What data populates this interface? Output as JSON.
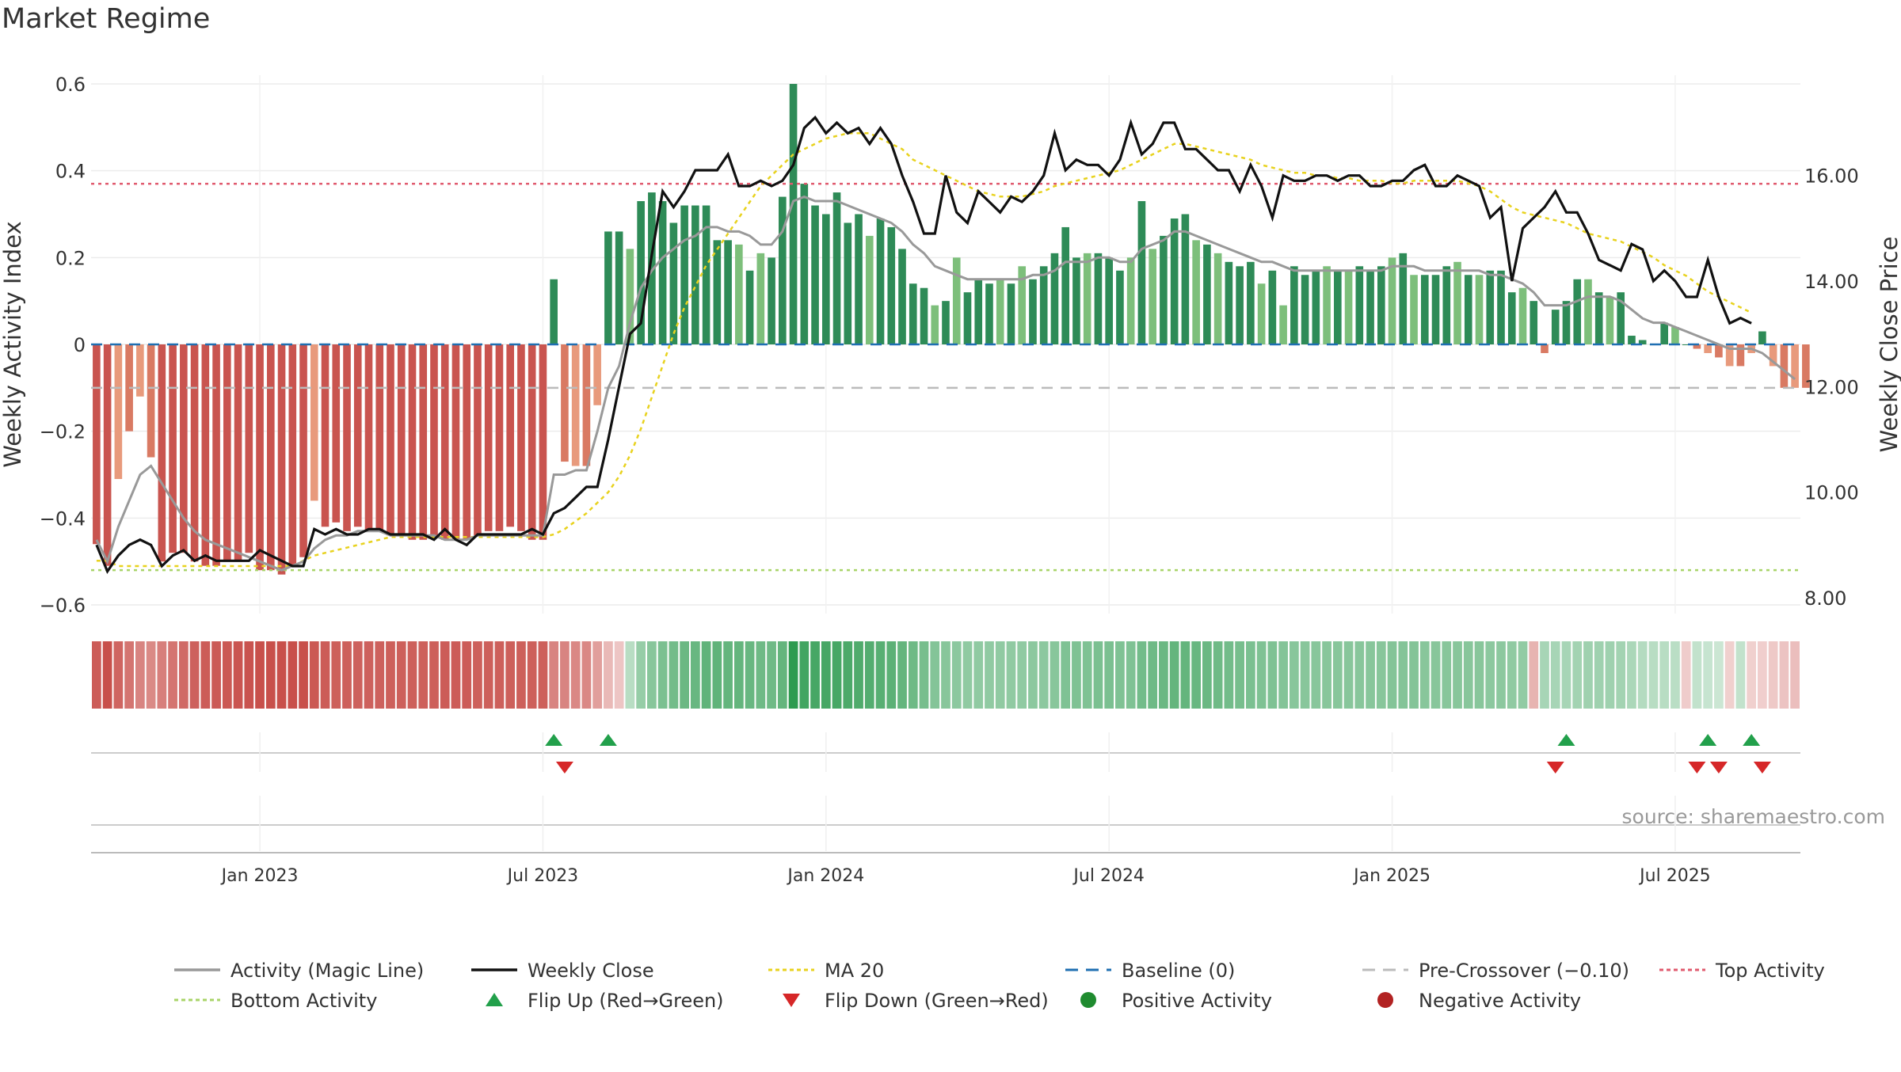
{
  "title": "Market Regime",
  "source": "source: sharemaestro.com",
  "colors": {
    "red_dark": "#c9544f",
    "red_mid": "#d97a63",
    "red_light": "#e89a7c",
    "green_dark": "#2e8b57",
    "green_light": "#7dbf7b",
    "magic": "#999999",
    "close": "#111111",
    "ma20": "#e8d21e",
    "baseline": "#1f6fb2",
    "precross": "#bbbbbb",
    "top": "#e05a6e",
    "bottom": "#a8d468",
    "flip_up": "#22a04b",
    "flip_down": "#d62728",
    "positive": "#1f8b2f",
    "negative": "#b22222"
  },
  "chart_data": {
    "type": "bar",
    "ylabel": "Weekly Activity Index",
    "y2label": "Weekly Close Price",
    "ylim": [
      -0.62,
      0.62
    ],
    "y2lim": [
      7.7,
      17.9
    ],
    "yticks": [
      "0.6",
      "0.4",
      "0.2",
      "0",
      "−0.2",
      "−0.4",
      "−0.6"
    ],
    "yticks_values": [
      0.6,
      0.4,
      0.2,
      0,
      -0.2,
      -0.4,
      -0.6
    ],
    "y2ticks": [
      "16.00",
      "14.00",
      "12.00",
      "10.00",
      "8.00"
    ],
    "y2ticks_values": [
      16,
      14,
      12,
      10,
      8
    ],
    "xticks": [
      "Jan 2023",
      "Jul 2023",
      "Jan 2024",
      "Jul 2024",
      "Jan 2025",
      "Jul 2025"
    ],
    "xticks_weeks": [
      15,
      41,
      67,
      93,
      119,
      145
    ],
    "weeks": 157,
    "levels": {
      "top": 0.37,
      "bottom": -0.52,
      "pre_crossover": -0.1,
      "baseline": 0
    },
    "activity": [
      -0.46,
      -0.51,
      -0.31,
      -0.2,
      -0.12,
      -0.26,
      -0.5,
      -0.48,
      -0.48,
      -0.5,
      -0.51,
      -0.51,
      -0.5,
      -0.5,
      -0.48,
      -0.52,
      -0.52,
      -0.53,
      -0.51,
      -0.49,
      -0.36,
      -0.42,
      -0.41,
      -0.43,
      -0.42,
      -0.43,
      -0.43,
      -0.44,
      -0.44,
      -0.45,
      -0.45,
      -0.44,
      -0.45,
      -0.45,
      -0.45,
      -0.44,
      -0.43,
      -0.43,
      -0.42,
      -0.43,
      -0.45,
      -0.45,
      0.15,
      -0.27,
      -0.28,
      -0.28,
      -0.14,
      0.26,
      0.26,
      0.22,
      0.33,
      0.35,
      0.33,
      0.28,
      0.32,
      0.32,
      0.32,
      0.24,
      0.24,
      0.23,
      0.17,
      0.21,
      0.2,
      0.34,
      0.6,
      0.37,
      0.32,
      0.3,
      0.35,
      0.28,
      0.3,
      0.25,
      0.29,
      0.27,
      0.22,
      0.14,
      0.13,
      0.09,
      0.1,
      0.2,
      0.12,
      0.15,
      0.14,
      0.15,
      0.14,
      0.18,
      0.15,
      0.18,
      0.21,
      0.27,
      0.2,
      0.21,
      0.21,
      0.2,
      0.17,
      0.2,
      0.33,
      0.22,
      0.25,
      0.29,
      0.3,
      0.24,
      0.23,
      0.21,
      0.19,
      0.18,
      0.19,
      0.14,
      0.17,
      0.09,
      0.18,
      0.16,
      0.17,
      0.18,
      0.17,
      0.17,
      0.18,
      0.17,
      0.18,
      0.2,
      0.21,
      0.16,
      0.16,
      0.16,
      0.18,
      0.19,
      0.16,
      0.16,
      0.17,
      0.17,
      0.12,
      0.13,
      0.1,
      -0.02,
      0.08,
      0.1,
      0.15,
      0.15,
      0.12,
      0.11,
      0.12,
      0.02,
      0.01,
      0.0,
      0.05,
      0.04,
      0.0,
      -0.01,
      -0.02,
      -0.03,
      -0.05,
      -0.05,
      -0.02,
      0.03,
      -0.05,
      -0.1,
      -0.1,
      -0.1
    ],
    "magic_line": [
      -0.45,
      -0.5,
      -0.42,
      -0.36,
      -0.3,
      -0.28,
      -0.32,
      -0.36,
      -0.4,
      -0.43,
      -0.45,
      -0.46,
      -0.47,
      -0.48,
      -0.49,
      -0.5,
      -0.51,
      -0.52,
      -0.51,
      -0.5,
      -0.47,
      -0.45,
      -0.44,
      -0.44,
      -0.43,
      -0.43,
      -0.43,
      -0.44,
      -0.44,
      -0.44,
      -0.44,
      -0.44,
      -0.45,
      -0.45,
      -0.45,
      -0.44,
      -0.44,
      -0.44,
      -0.44,
      -0.44,
      -0.44,
      -0.44,
      -0.3,
      -0.3,
      -0.29,
      -0.29,
      -0.2,
      -0.1,
      -0.05,
      0.05,
      0.13,
      0.17,
      0.2,
      0.22,
      0.24,
      0.25,
      0.27,
      0.27,
      0.26,
      0.26,
      0.25,
      0.23,
      0.23,
      0.26,
      0.33,
      0.34,
      0.33,
      0.33,
      0.33,
      0.32,
      0.31,
      0.3,
      0.29,
      0.28,
      0.26,
      0.23,
      0.21,
      0.18,
      0.17,
      0.16,
      0.15,
      0.15,
      0.15,
      0.15,
      0.15,
      0.15,
      0.16,
      0.16,
      0.17,
      0.19,
      0.19,
      0.19,
      0.2,
      0.2,
      0.19,
      0.19,
      0.22,
      0.23,
      0.24,
      0.26,
      0.26,
      0.25,
      0.24,
      0.23,
      0.22,
      0.21,
      0.2,
      0.19,
      0.19,
      0.18,
      0.17,
      0.17,
      0.17,
      0.17,
      0.17,
      0.17,
      0.17,
      0.17,
      0.17,
      0.18,
      0.18,
      0.18,
      0.17,
      0.17,
      0.17,
      0.17,
      0.17,
      0.17,
      0.16,
      0.16,
      0.15,
      0.14,
      0.12,
      0.09,
      0.09,
      0.09,
      0.1,
      0.11,
      0.11,
      0.11,
      0.1,
      0.08,
      0.06,
      0.05,
      0.05,
      0.04,
      0.03,
      0.02,
      0.01,
      0.0,
      -0.01,
      -0.01,
      -0.01,
      -0.02,
      -0.04,
      -0.06,
      -0.08
    ],
    "weekly_close": [
      9.0,
      8.5,
      8.8,
      9.0,
      9.1,
      9.0,
      8.6,
      8.8,
      8.9,
      8.7,
      8.8,
      8.7,
      8.7,
      8.7,
      8.7,
      8.9,
      8.8,
      8.7,
      8.6,
      8.6,
      9.3,
      9.2,
      9.3,
      9.2,
      9.2,
      9.3,
      9.3,
      9.2,
      9.2,
      9.2,
      9.2,
      9.1,
      9.3,
      9.1,
      9.0,
      9.2,
      9.2,
      9.2,
      9.2,
      9.2,
      9.3,
      9.2,
      9.6,
      9.7,
      9.9,
      10.1,
      10.1,
      11.0,
      12.0,
      13.0,
      13.2,
      14.5,
      15.7,
      15.4,
      15.7,
      16.1,
      16.1,
      16.1,
      16.4,
      15.8,
      15.8,
      15.9,
      15.8,
      15.9,
      16.2,
      16.9,
      17.1,
      16.8,
      17.0,
      16.8,
      16.9,
      16.6,
      16.9,
      16.6,
      16.0,
      15.5,
      14.9,
      14.9,
      16.0,
      15.3,
      15.1,
      15.7,
      15.5,
      15.3,
      15.6,
      15.5,
      15.7,
      16.0,
      16.8,
      16.1,
      16.3,
      16.2,
      16.2,
      16.0,
      16.3,
      17.0,
      16.4,
      16.6,
      17.0,
      17.0,
      16.5,
      16.5,
      16.3,
      16.1,
      16.1,
      15.7,
      16.2,
      15.8,
      15.2,
      16.0,
      15.9,
      15.9,
      16.0,
      16.0,
      15.9,
      16.0,
      16.0,
      15.8,
      15.8,
      15.9,
      15.9,
      16.1,
      16.2,
      15.8,
      15.8,
      16.0,
      15.9,
      15.8,
      15.2,
      15.4,
      14.0,
      15.0,
      15.2,
      15.4,
      15.7,
      15.3,
      15.3,
      14.9,
      14.4,
      14.3,
      14.2,
      14.7,
      14.6,
      14.0,
      14.2,
      14.0,
      13.7,
      13.7,
      14.4,
      13.7,
      13.2,
      13.3,
      13.2
    ],
    "ma20": [
      8.7,
      8.7,
      8.6,
      8.6,
      8.6,
      8.6,
      8.6,
      8.6,
      8.6,
      8.6,
      8.6,
      8.6,
      8.6,
      8.6,
      8.6,
      8.6,
      8.6,
      8.6,
      8.6,
      8.7,
      8.8,
      8.85,
      8.9,
      8.95,
      9.0,
      9.05,
      9.1,
      9.15,
      9.15,
      9.15,
      9.15,
      9.15,
      9.15,
      9.15,
      9.15,
      9.15,
      9.15,
      9.15,
      9.15,
      9.15,
      9.15,
      9.15,
      9.2,
      9.3,
      9.45,
      9.6,
      9.8,
      10.0,
      10.3,
      10.7,
      11.2,
      11.8,
      12.4,
      13.0,
      13.5,
      13.9,
      14.3,
      14.6,
      14.9,
      15.2,
      15.5,
      15.8,
      16.0,
      16.2,
      16.4,
      16.5,
      16.6,
      16.7,
      16.75,
      16.8,
      16.8,
      16.8,
      16.7,
      16.6,
      16.5,
      16.3,
      16.2,
      16.1,
      16.0,
      15.9,
      15.8,
      15.7,
      15.65,
      15.6,
      15.6,
      15.6,
      15.65,
      15.7,
      15.8,
      15.85,
      15.9,
      15.95,
      16.0,
      16.05,
      16.1,
      16.2,
      16.3,
      16.4,
      16.5,
      16.6,
      16.6,
      16.55,
      16.5,
      16.45,
      16.4,
      16.35,
      16.3,
      16.2,
      16.15,
      16.1,
      16.05,
      16.05,
      16.0,
      16.0,
      15.95,
      15.95,
      15.9,
      15.9,
      15.9,
      15.85,
      15.85,
      15.9,
      15.9,
      15.9,
      15.9,
      15.9,
      15.85,
      15.8,
      15.7,
      15.55,
      15.4,
      15.3,
      15.25,
      15.2,
      15.15,
      15.1,
      15.0,
      14.9,
      14.85,
      14.8,
      14.75,
      14.65,
      14.55,
      14.45,
      14.3,
      14.2,
      14.1,
      13.95,
      13.8,
      13.7,
      13.6,
      13.5,
      13.4
    ],
    "tiles": [
      -0.45,
      -0.5,
      -0.42,
      -0.36,
      -0.3,
      -0.28,
      -0.32,
      -0.36,
      -0.4,
      -0.43,
      -0.45,
      -0.46,
      -0.47,
      -0.48,
      -0.49,
      -0.5,
      -0.51,
      -0.52,
      -0.51,
      -0.5,
      -0.47,
      -0.45,
      -0.44,
      -0.44,
      -0.43,
      -0.43,
      -0.43,
      -0.44,
      -0.44,
      -0.44,
      -0.44,
      -0.44,
      -0.45,
      -0.45,
      -0.45,
      -0.44,
      -0.44,
      -0.44,
      -0.44,
      -0.44,
      -0.44,
      -0.44,
      -0.3,
      -0.3,
      -0.29,
      -0.29,
      -0.2,
      -0.1,
      -0.05,
      0.05,
      0.13,
      0.17,
      0.2,
      0.22,
      0.24,
      0.25,
      0.27,
      0.27,
      0.26,
      0.26,
      0.25,
      0.23,
      0.23,
      0.26,
      0.45,
      0.34,
      0.33,
      0.33,
      0.33,
      0.32,
      0.31,
      0.3,
      0.29,
      0.28,
      0.26,
      0.23,
      0.21,
      0.18,
      0.17,
      0.16,
      0.15,
      0.15,
      0.15,
      0.15,
      0.15,
      0.15,
      0.16,
      0.16,
      0.17,
      0.19,
      0.19,
      0.19,
      0.2,
      0.2,
      0.19,
      0.19,
      0.22,
      0.23,
      0.24,
      0.26,
      0.26,
      0.25,
      0.24,
      0.23,
      0.22,
      0.21,
      0.2,
      0.19,
      0.19,
      0.18,
      0.17,
      0.17,
      0.17,
      0.17,
      0.17,
      0.17,
      0.17,
      0.17,
      0.17,
      0.18,
      0.18,
      0.18,
      0.17,
      0.17,
      0.17,
      0.17,
      0.17,
      0.17,
      0.16,
      0.16,
      0.15,
      0.14,
      -0.12,
      0.09,
      0.09,
      0.09,
      0.1,
      0.11,
      0.11,
      0.11,
      0.1,
      0.08,
      0.06,
      0.05,
      0.05,
      0.04,
      -0.03,
      0.02,
      0.01,
      0.0,
      -0.01,
      0.02,
      -0.01,
      -0.02,
      -0.04,
      -0.06,
      -0.08
    ],
    "flip_up_weeks": [
      42,
      47,
      135,
      148,
      152
    ],
    "flip_down_weeks": [
      43,
      134,
      147,
      149,
      153
    ],
    "legend": [
      {
        "label": "Activity (Magic Line)",
        "kind": "line",
        "color": "#999999"
      },
      {
        "label": "Weekly Close",
        "kind": "line",
        "color": "#111111"
      },
      {
        "label": "MA 20",
        "kind": "dotted",
        "color": "#e8d21e"
      },
      {
        "label": "Baseline (0)",
        "kind": "dashed",
        "color": "#1f6fb2"
      },
      {
        "label": "Pre-Crossover (−0.10)",
        "kind": "dashed",
        "color": "#bbbbbb"
      },
      {
        "label": "Top Activity",
        "kind": "dotted",
        "color": "#e05a6e"
      },
      {
        "label": "Bottom Activity",
        "kind": "dotted",
        "color": "#a8d468"
      },
      {
        "label": "Flip Up (Red→Green)",
        "kind": "tri-up",
        "color": "#22a04b"
      },
      {
        "label": "Flip Down (Green→Red)",
        "kind": "tri-down",
        "color": "#d62728"
      },
      {
        "label": "Positive Activity",
        "kind": "dot",
        "color": "#1f8b2f"
      },
      {
        "label": "Negative Activity",
        "kind": "dot",
        "color": "#b22222"
      }
    ]
  }
}
